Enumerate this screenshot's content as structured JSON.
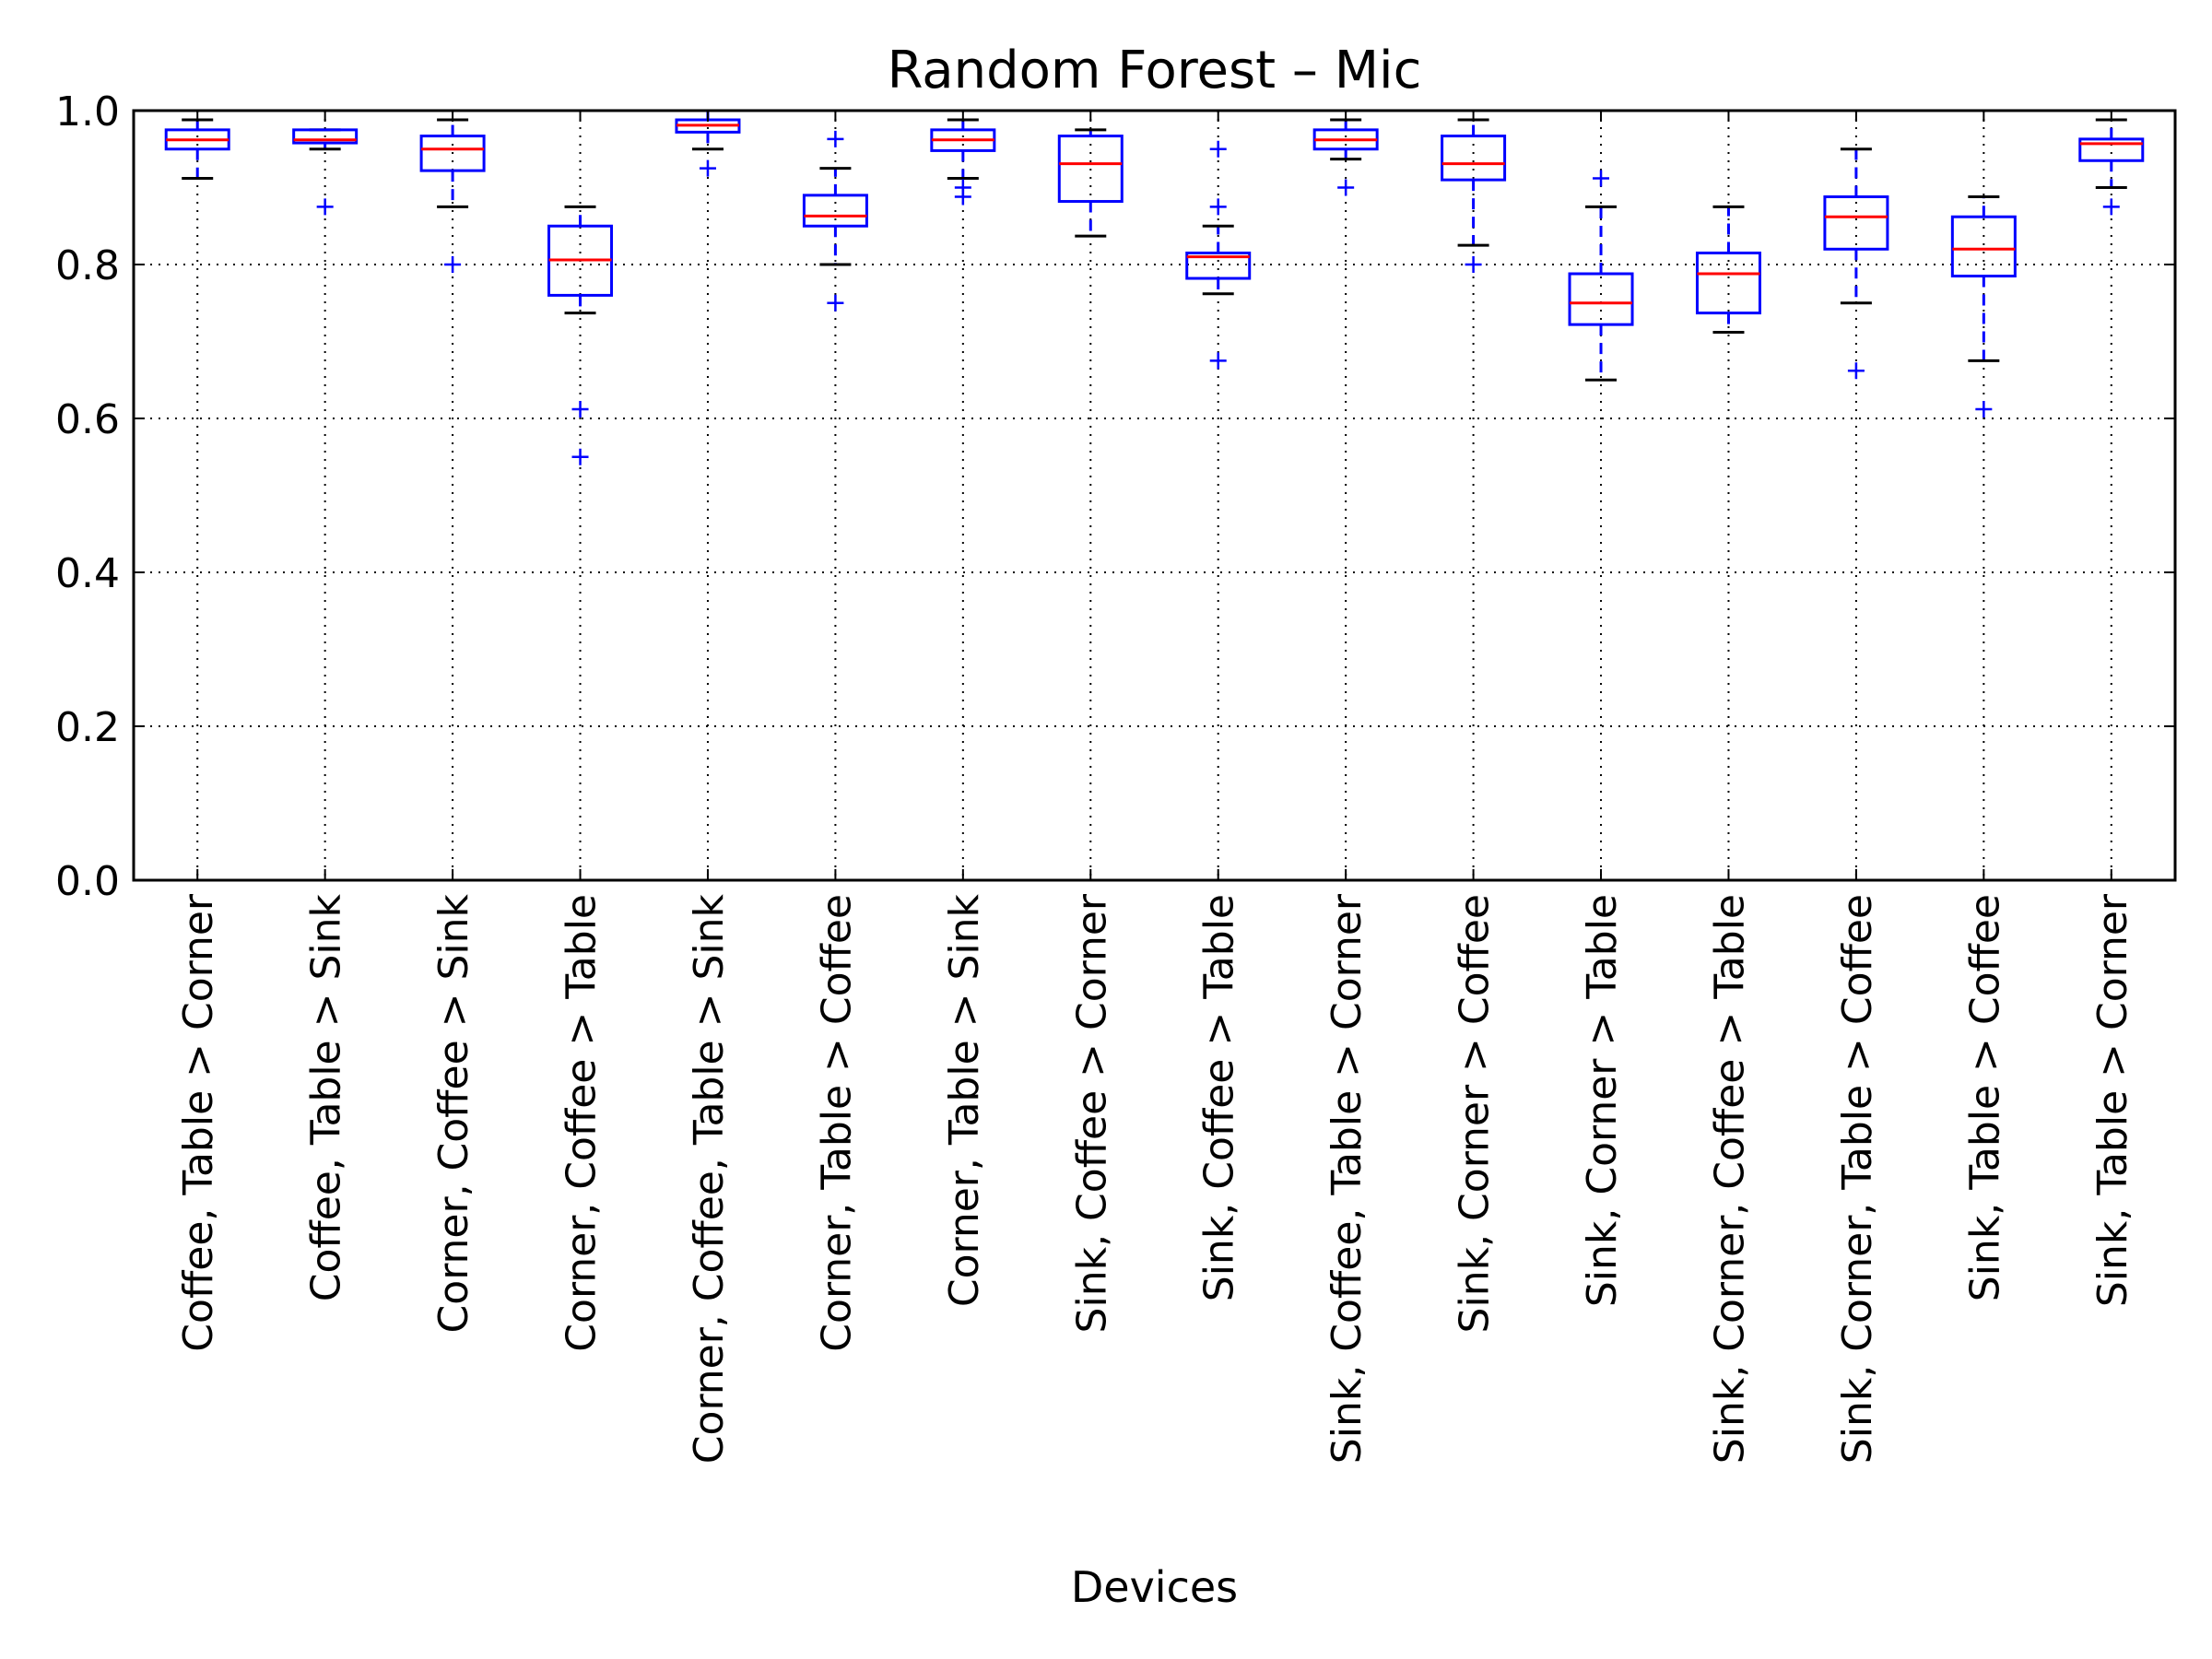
{
  "chart_data": {
    "type": "box",
    "title": "Random Forest – Mic",
    "xlabel": "Devices",
    "ylabel": "",
    "ylim": [
      0.0,
      1.0
    ],
    "yticks": [
      "0.0",
      "0.2",
      "0.4",
      "0.6",
      "0.8",
      "1.0"
    ],
    "grid": true,
    "colors": {
      "box": "#0000ff",
      "median": "#ff0000",
      "whisker": "#000000",
      "flier": "#0000ff",
      "grid": "#000000"
    },
    "categories": [
      "Coffee, Table > Corner",
      "Coffee, Table > Sink",
      "Corner, Coffee > Sink",
      "Corner, Coffee > Table",
      "Corner, Coffee, Table > Sink",
      "Corner, Table > Coffee",
      "Corner, Table > Sink",
      "Sink, Coffee > Corner",
      "Sink, Coffee > Table",
      "Sink, Coffee, Table > Corner",
      "Sink, Corner > Coffee",
      "Sink, Corner > Table",
      "Sink, Corner, Coffee > Table",
      "Sink, Corner, Table > Coffee",
      "Sink, Table > Coffee",
      "Sink, Table > Corner"
    ],
    "boxes": [
      {
        "whislo": 0.912,
        "q1": 0.95,
        "med": 0.962,
        "q3": 0.975,
        "whishi": 0.988,
        "fliers": []
      },
      {
        "whislo": 0.95,
        "q1": 0.958,
        "med": 0.962,
        "q3": 0.975,
        "whishi": 0.975,
        "fliers": [
          0.875
        ]
      },
      {
        "whislo": 0.875,
        "q1": 0.922,
        "med": 0.95,
        "q3": 0.967,
        "whishi": 0.988,
        "fliers": [
          0.8
        ]
      },
      {
        "whislo": 0.737,
        "q1": 0.76,
        "med": 0.806,
        "q3": 0.85,
        "whishi": 0.875,
        "fliers": [
          0.612,
          0.55
        ]
      },
      {
        "whislo": 0.95,
        "q1": 0.972,
        "med": 0.981,
        "q3": 0.988,
        "whishi": 1.0,
        "fliers": [
          0.925
        ]
      },
      {
        "whislo": 0.8,
        "q1": 0.85,
        "med": 0.863,
        "q3": 0.89,
        "whishi": 0.925,
        "fliers": [
          0.963,
          0.75
        ]
      },
      {
        "whislo": 0.912,
        "q1": 0.948,
        "med": 0.962,
        "q3": 0.975,
        "whishi": 0.988,
        "fliers": [
          0.9,
          0.888
        ]
      },
      {
        "whislo": 0.837,
        "q1": 0.882,
        "med": 0.931,
        "q3": 0.967,
        "whishi": 0.975,
        "fliers": []
      },
      {
        "whislo": 0.762,
        "q1": 0.782,
        "med": 0.81,
        "q3": 0.815,
        "whishi": 0.85,
        "fliers": [
          0.95,
          0.875,
          0.675
        ]
      },
      {
        "whislo": 0.937,
        "q1": 0.95,
        "med": 0.962,
        "q3": 0.975,
        "whishi": 0.988,
        "fliers": [
          0.9
        ]
      },
      {
        "whislo": 0.825,
        "q1": 0.91,
        "med": 0.931,
        "q3": 0.967,
        "whishi": 0.988,
        "fliers": [
          0.8
        ]
      },
      {
        "whislo": 0.65,
        "q1": 0.722,
        "med": 0.75,
        "q3": 0.788,
        "whishi": 0.875,
        "fliers": [
          0.912
        ]
      },
      {
        "whislo": 0.712,
        "q1": 0.737,
        "med": 0.788,
        "q3": 0.815,
        "whishi": 0.875,
        "fliers": []
      },
      {
        "whislo": 0.75,
        "q1": 0.82,
        "med": 0.862,
        "q3": 0.888,
        "whishi": 0.95,
        "fliers": [
          0.662
        ]
      },
      {
        "whislo": 0.675,
        "q1": 0.785,
        "med": 0.82,
        "q3": 0.862,
        "whishi": 0.888,
        "fliers": [
          0.612
        ]
      },
      {
        "whislo": 0.9,
        "q1": 0.935,
        "med": 0.957,
        "q3": 0.963,
        "whishi": 0.988,
        "fliers": [
          0.875
        ]
      }
    ]
  }
}
